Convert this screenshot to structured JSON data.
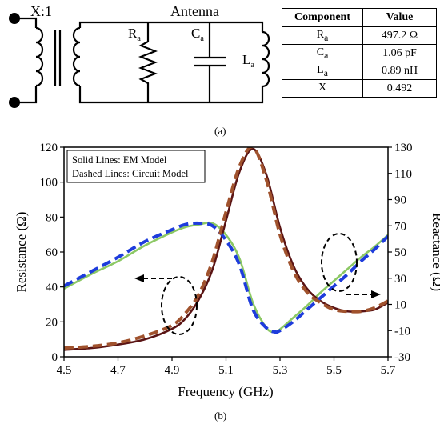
{
  "circuit": {
    "transformer_label": "X:1",
    "antenna_label": "Antenna",
    "components": [
      {
        "symbol": "R",
        "sub": "a",
        "kind": "resistor"
      },
      {
        "symbol": "C",
        "sub": "a",
        "kind": "capacitor"
      },
      {
        "symbol": "L",
        "sub": "a",
        "kind": "inductor"
      }
    ]
  },
  "table": {
    "headers": [
      "Component",
      "Value"
    ],
    "rows": [
      {
        "symbol": "R",
        "sub": "a",
        "value": "497.2 Ω"
      },
      {
        "symbol": "C",
        "sub": "a",
        "value": "1.06 pF"
      },
      {
        "symbol": "L",
        "sub": "a",
        "value": "0.89 nH"
      },
      {
        "symbol": "X",
        "sub": "",
        "value": "0.492"
      }
    ]
  },
  "captions": {
    "a": "(a)",
    "b": "(b)"
  },
  "chart_data": {
    "type": "line",
    "xlabel": "Frequency (GHz)",
    "ylabel": "Resistance (Ω)",
    "y2label": "Reactance (Ω)",
    "xlim": [
      4.5,
      5.7
    ],
    "ylim": [
      0,
      120
    ],
    "y2lim": [
      -30,
      130
    ],
    "xticks": [
      "4.5",
      "4.7",
      "4.9",
      "5.1",
      "5.3",
      "5.5",
      "5.7"
    ],
    "yticks": [
      "0",
      "20",
      "40",
      "60",
      "80",
      "100",
      "120"
    ],
    "y2ticks": [
      "-30",
      "-10",
      "10",
      "30",
      "50",
      "70",
      "90",
      "110",
      "130"
    ],
    "legend_lines": [
      "Solid Lines: EM Model",
      "Dashed Lines: Circuit Model"
    ],
    "legend_position": "top-left",
    "series": [
      {
        "axis": "left",
        "style": "solid",
        "color": "#5a1414",
        "x": [
          4.5,
          4.6,
          4.7,
          4.8,
          4.9,
          4.95,
          5.0,
          5.05,
          5.1,
          5.15,
          5.2,
          5.25,
          5.3,
          5.35,
          5.4,
          5.45,
          5.5,
          5.55,
          5.6,
          5.65,
          5.7
        ],
        "y": [
          4,
          5,
          7,
          10,
          16,
          22,
          33,
          50,
          78,
          106,
          119,
          104,
          74,
          52,
          39,
          32,
          28,
          26,
          26,
          27,
          31
        ]
      },
      {
        "axis": "left",
        "style": "dashed",
        "color": "#a0522d",
        "x": [
          4.5,
          4.6,
          4.7,
          4.8,
          4.9,
          4.95,
          5.0,
          5.05,
          5.1,
          5.15,
          5.2,
          5.25,
          5.3,
          5.35,
          5.4,
          5.45,
          5.5,
          5.55,
          5.6,
          5.65,
          5.7
        ],
        "y": [
          5,
          6,
          8,
          12,
          18,
          25,
          36,
          55,
          83,
          109,
          120,
          101,
          70,
          49,
          37,
          31,
          27,
          26,
          26,
          28,
          32
        ]
      },
      {
        "axis": "right",
        "style": "solid",
        "color": "#8cc864",
        "x": [
          4.5,
          4.6,
          4.7,
          4.8,
          4.9,
          4.95,
          5.0,
          5.05,
          5.1,
          5.15,
          5.2,
          5.25,
          5.28,
          5.3,
          5.35,
          5.4,
          5.45,
          5.5,
          5.55,
          5.6,
          5.65,
          5.7
        ],
        "y": [
          22,
          33,
          43,
          55,
          65,
          69,
          71,
          72,
          63,
          45,
          11,
          -8,
          -11,
          -9,
          0,
          9,
          19,
          28,
          37,
          46,
          54,
          63
        ]
      },
      {
        "axis": "right",
        "style": "dashed",
        "color": "#1e3cdc",
        "x": [
          4.5,
          4.6,
          4.7,
          4.8,
          4.9,
          4.95,
          5.0,
          5.05,
          5.1,
          5.15,
          5.2,
          5.25,
          5.28,
          5.3,
          5.35,
          5.4,
          5.45,
          5.5,
          5.55,
          5.6,
          5.65,
          5.7
        ],
        "y": [
          24,
          35,
          46,
          58,
          67,
          71,
          72,
          70,
          59,
          40,
          6,
          -8,
          -11,
          -10,
          -3,
          6,
          15,
          24,
          33,
          43,
          52,
          62
        ]
      }
    ]
  }
}
